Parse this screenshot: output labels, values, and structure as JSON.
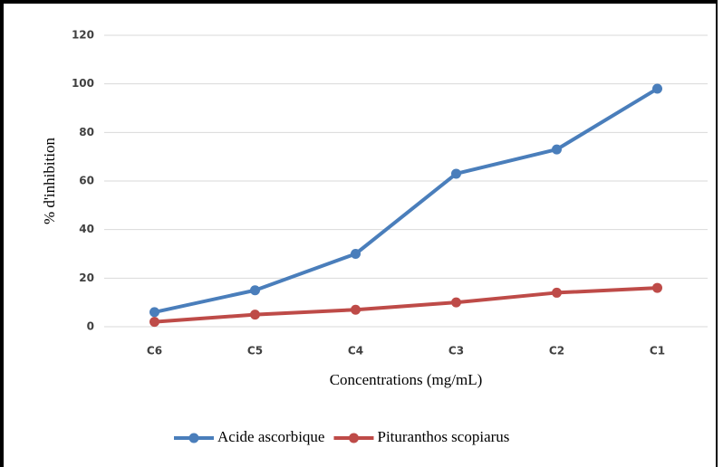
{
  "chart_data": {
    "type": "line",
    "x_label": "Concentrations (mg/mL)",
    "y_label": "% d'inhibition",
    "categories": [
      "C6",
      "C5",
      "C4",
      "C3",
      "C2",
      "C1"
    ],
    "series": [
      {
        "name": "Acide ascorbique",
        "color": "#4a7ebb",
        "values": [
          6,
          15,
          30,
          63,
          73,
          98
        ]
      },
      {
        "name": "Pituranthos scopiarus",
        "color": "#be4b48",
        "values": [
          2,
          5,
          7,
          10,
          14,
          16
        ]
      }
    ],
    "ylim": [
      0,
      120
    ],
    "yticks": [
      0,
      20,
      40,
      60,
      80,
      100,
      120
    ],
    "grid": true,
    "legend": "bottom"
  }
}
